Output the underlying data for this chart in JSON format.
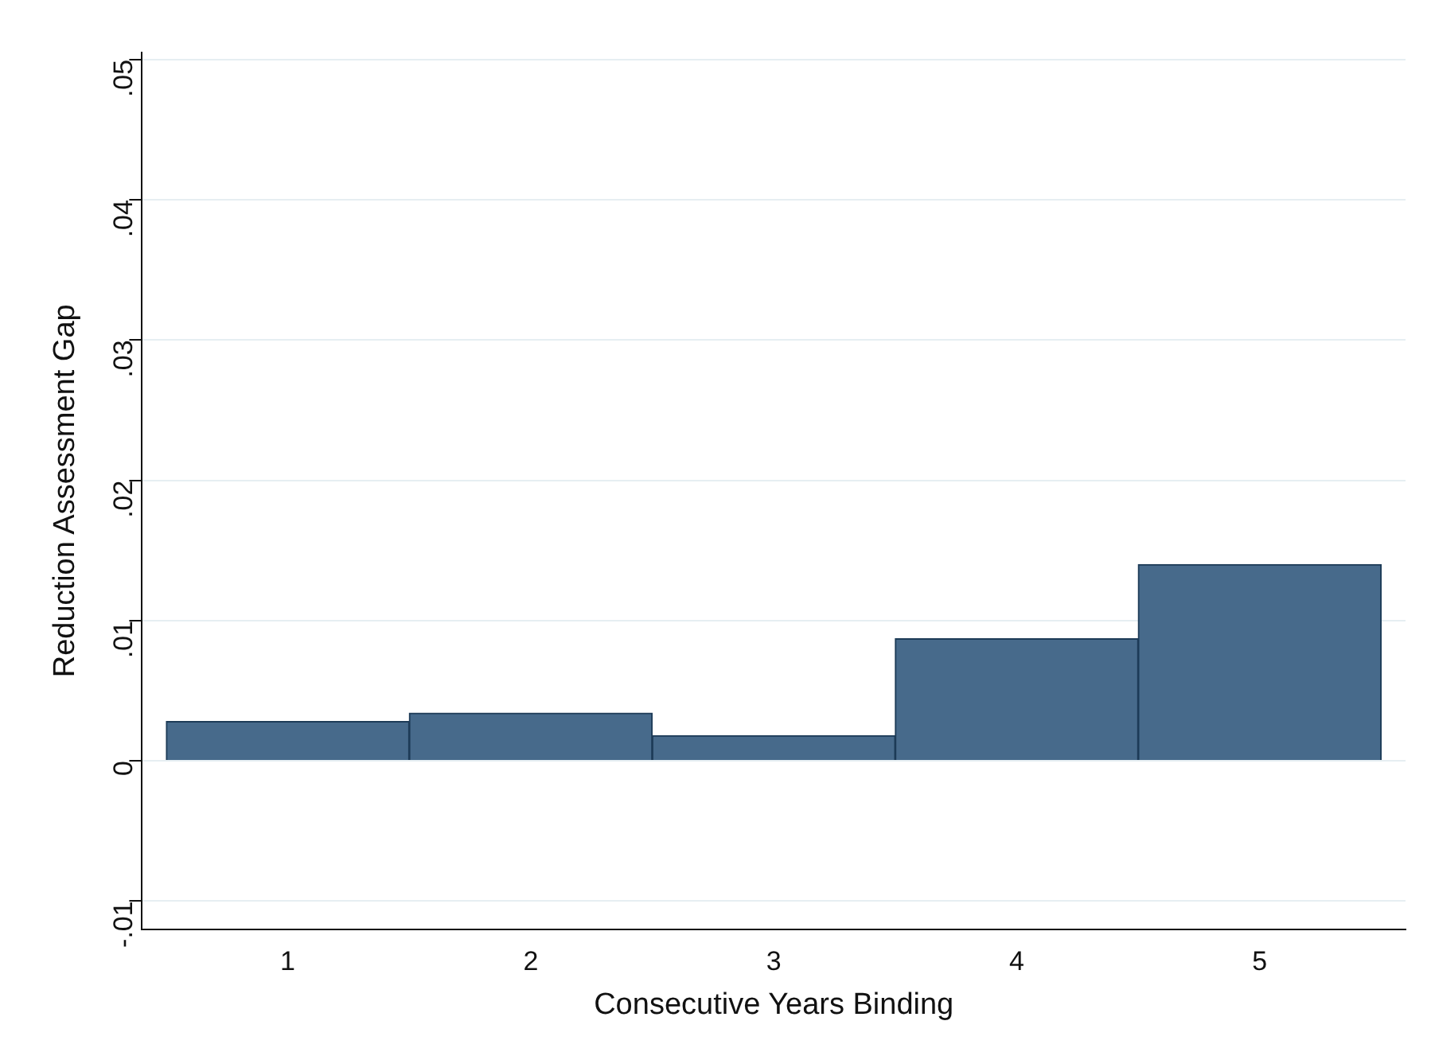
{
  "chart_data": {
    "type": "histogram",
    "xlabel": "Consecutive Years Binding",
    "ylabel": "Reduction Assessment Gap",
    "bins": [
      0.5,
      1.5,
      2.5,
      3.5,
      4.5,
      5.5
    ],
    "values": [
      0.0028,
      0.0034,
      0.0018,
      0.0087,
      0.014
    ],
    "color": "#476a8b",
    "xlim": [
      0.4,
      5.6
    ],
    "xticks": [
      1,
      2,
      3,
      4,
      5
    ],
    "ylim": [
      -0.012,
      0.0505
    ],
    "yticks": [
      {
        "value": -0.01,
        "label": "-.01"
      },
      0,
      {
        "value": 0.01,
        "label": ".01"
      },
      {
        "value": 0.02,
        "label": ".02"
      },
      {
        "value": 0.03,
        "label": ".03"
      },
      {
        "value": 0.04,
        "label": ".04"
      },
      {
        "value": 0.05,
        "label": ".05"
      }
    ],
    "grid": "y"
  }
}
